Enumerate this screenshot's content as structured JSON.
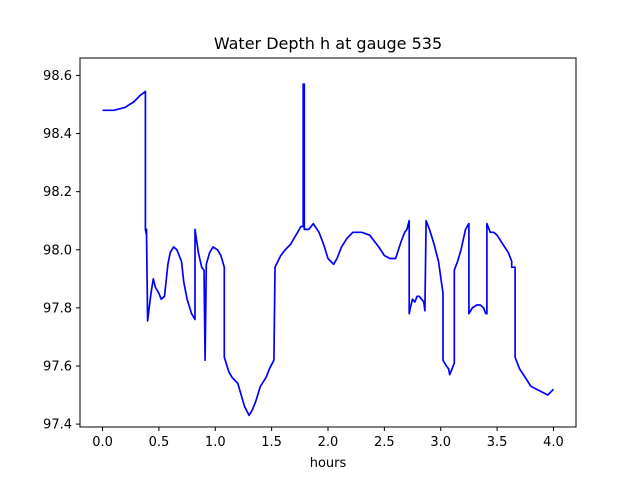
{
  "chart_data": {
    "type": "line",
    "title": "Water Depth h at gauge 535",
    "xlabel": "hours",
    "ylabel": "",
    "xlim": [
      -0.2,
      4.2
    ],
    "ylim": [
      97.39,
      98.66
    ],
    "xticks": [
      0.0,
      0.5,
      1.0,
      1.5,
      2.0,
      2.5,
      3.0,
      3.5,
      4.0
    ],
    "xtick_labels": [
      "0.0",
      "0.5",
      "1.0",
      "1.5",
      "2.0",
      "2.5",
      "3.0",
      "3.5",
      "4.0"
    ],
    "yticks": [
      97.4,
      97.6,
      97.8,
      98.0,
      98.2,
      98.4,
      98.6
    ],
    "ytick_labels": [
      "97.4",
      "97.6",
      "97.8",
      "98.0",
      "98.2",
      "98.4",
      "98.6"
    ],
    "grid": false,
    "legend": "none",
    "series": [
      {
        "color": "#0000ff",
        "x": [
          0.0,
          0.1,
          0.2,
          0.28,
          0.33,
          0.38,
          0.38,
          0.39,
          0.39,
          0.4,
          0.41,
          0.43,
          0.45,
          0.47,
          0.5,
          0.52,
          0.55,
          0.58,
          0.6,
          0.63,
          0.66,
          0.7,
          0.72,
          0.75,
          0.79,
          0.82,
          0.82,
          0.85,
          0.88,
          0.9,
          0.91,
          0.91,
          0.92,
          0.95,
          0.98,
          1.02,
          1.05,
          1.08,
          1.08,
          1.12,
          1.15,
          1.2,
          1.23,
          1.26,
          1.3,
          1.33,
          1.36,
          1.4,
          1.45,
          1.48,
          1.52,
          1.53,
          1.53,
          1.58,
          1.62,
          1.67,
          1.7,
          1.73,
          1.76,
          1.78,
          1.78,
          1.79,
          1.79,
          1.8,
          1.83,
          1.87,
          1.92,
          1.96,
          2.0,
          2.05,
          2.08,
          2.12,
          2.17,
          2.22,
          2.3,
          2.37,
          2.45,
          2.5,
          2.55,
          2.6,
          2.65,
          2.68,
          2.7,
          2.72,
          2.72,
          2.73,
          2.75,
          2.77,
          2.79,
          2.81,
          2.83,
          2.85,
          2.86,
          2.87,
          2.87,
          2.9,
          2.94,
          2.98,
          3.02,
          3.02,
          3.05,
          3.07,
          3.08,
          3.1,
          3.12,
          3.12,
          3.15,
          3.18,
          3.22,
          3.25,
          3.25,
          3.28,
          3.32,
          3.35,
          3.38,
          3.4,
          3.41,
          3.41,
          3.44,
          3.47,
          3.5,
          3.55,
          3.6,
          3.63,
          3.63,
          3.66,
          3.66,
          3.7,
          3.75,
          3.8,
          3.85,
          3.9,
          3.95,
          4.0
        ],
        "y": [
          98.48,
          98.48,
          98.49,
          98.51,
          98.53,
          98.545,
          98.07,
          98.05,
          98.07,
          97.755,
          97.79,
          97.85,
          97.9,
          97.87,
          97.85,
          97.83,
          97.84,
          97.95,
          97.99,
          98.01,
          98.0,
          97.96,
          97.89,
          97.83,
          97.78,
          97.76,
          98.07,
          97.99,
          97.94,
          97.93,
          97.62,
          97.62,
          97.95,
          97.99,
          98.01,
          98.0,
          97.98,
          97.94,
          97.63,
          97.58,
          97.56,
          97.54,
          97.5,
          97.46,
          97.43,
          97.45,
          97.48,
          97.53,
          97.56,
          97.59,
          97.62,
          97.93,
          97.94,
          97.98,
          98.0,
          98.02,
          98.04,
          98.06,
          98.08,
          98.08,
          98.57,
          98.57,
          98.07,
          98.07,
          98.07,
          98.09,
          98.06,
          98.02,
          97.97,
          97.95,
          97.97,
          98.01,
          98.04,
          98.06,
          98.06,
          98.05,
          98.01,
          97.98,
          97.97,
          97.97,
          98.03,
          98.06,
          98.07,
          98.1,
          97.78,
          97.8,
          97.83,
          97.82,
          97.84,
          97.84,
          97.83,
          97.82,
          97.79,
          98.1,
          98.1,
          98.07,
          98.02,
          97.96,
          97.85,
          97.62,
          97.6,
          97.59,
          97.57,
          97.59,
          97.61,
          97.93,
          97.96,
          98.0,
          98.07,
          98.09,
          97.78,
          97.8,
          97.81,
          97.81,
          97.8,
          97.78,
          97.78,
          98.09,
          98.06,
          98.06,
          98.05,
          98.02,
          97.99,
          97.96,
          97.94,
          97.94,
          97.63,
          97.59,
          97.56,
          97.53,
          97.52,
          97.51,
          97.5,
          97.52
        ]
      }
    ]
  }
}
